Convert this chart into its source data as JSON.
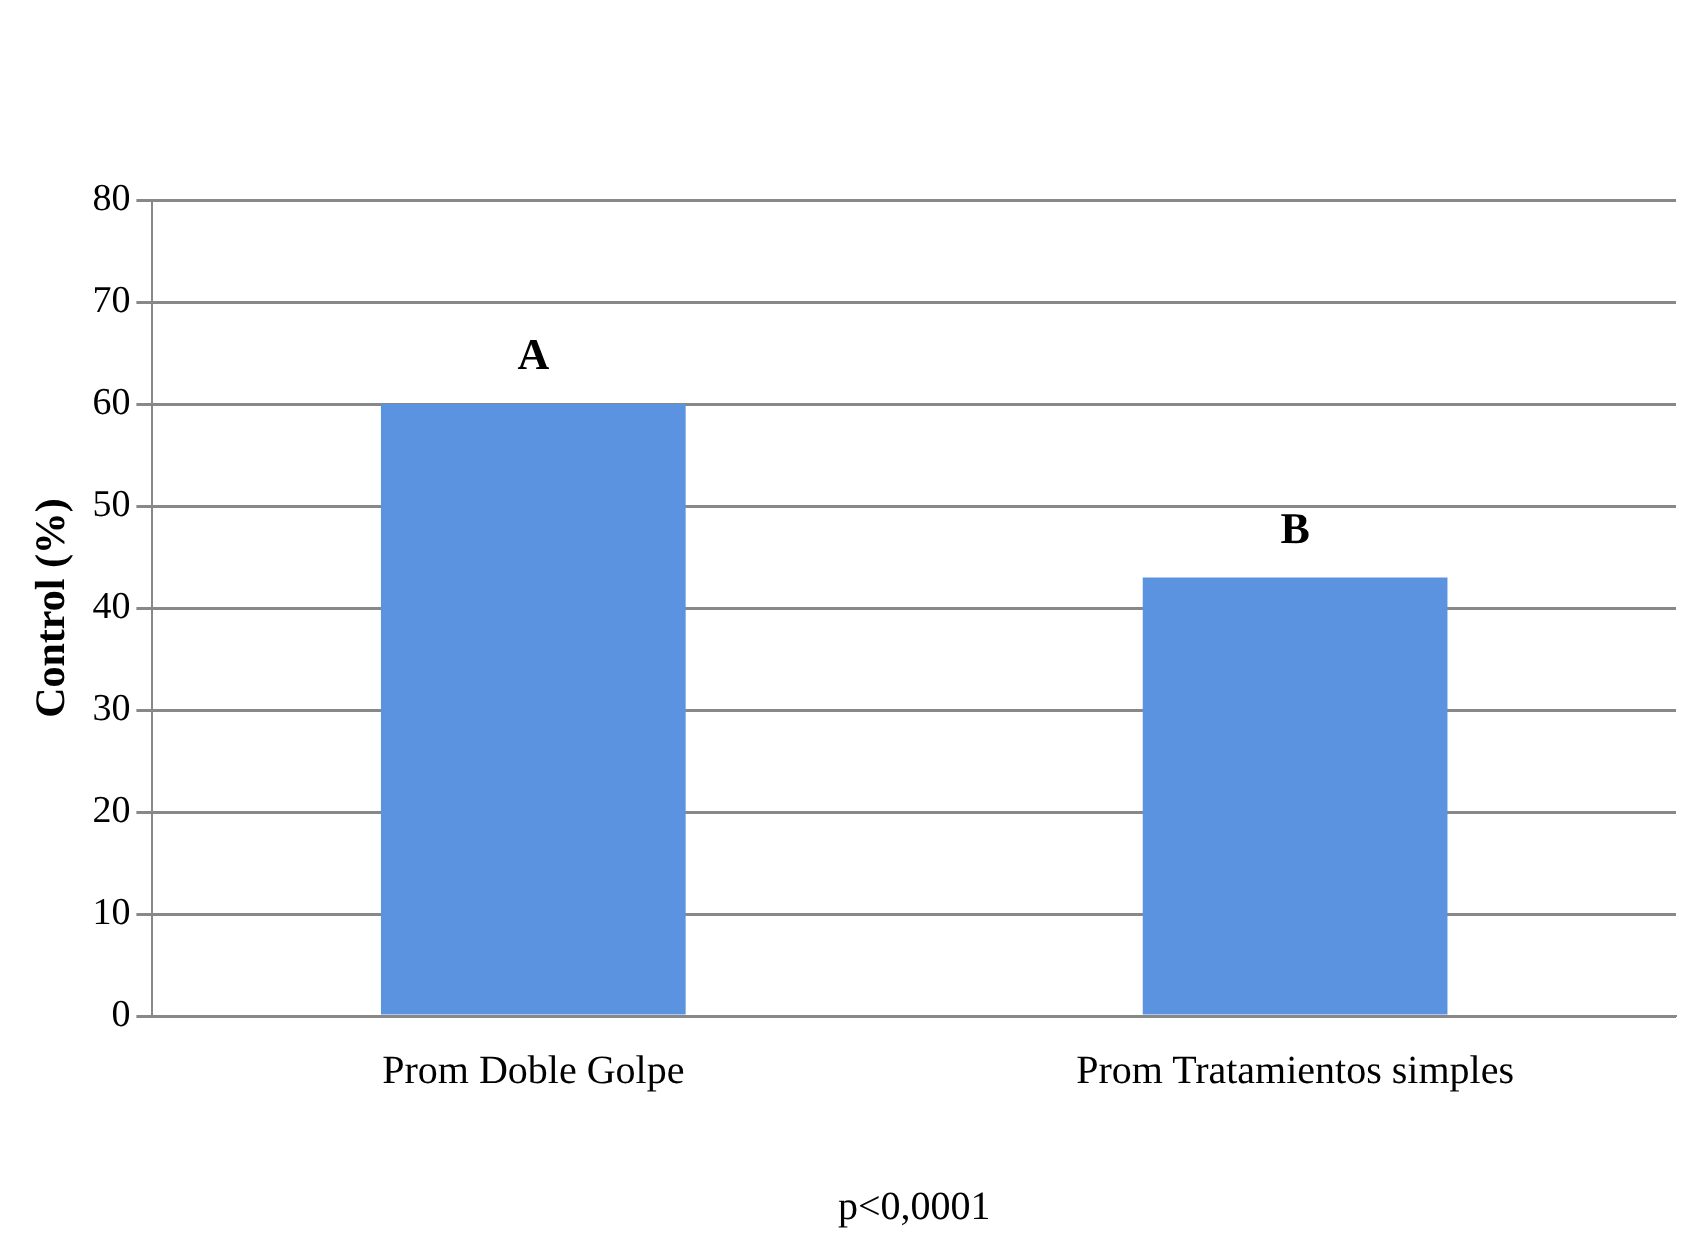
{
  "chart_data": {
    "type": "bar",
    "ylabel": "Control (%)",
    "categories": [
      "Prom Doble Golpe",
      "Prom Tratamientos simples"
    ],
    "values": [
      60,
      43
    ],
    "color": "#5b93e0",
    "ylim": [
      0,
      80
    ],
    "yticks": [
      0,
      10,
      20,
      30,
      40,
      50,
      60,
      70,
      80
    ],
    "grid": "y",
    "legend": false,
    "annotations": [
      {
        "text": "A",
        "x": "Prom Doble Golpe",
        "y": 60
      },
      {
        "text": "B",
        "x": "Prom Tratamientos simples",
        "y": 43
      },
      "p<0,0001"
    ]
  }
}
